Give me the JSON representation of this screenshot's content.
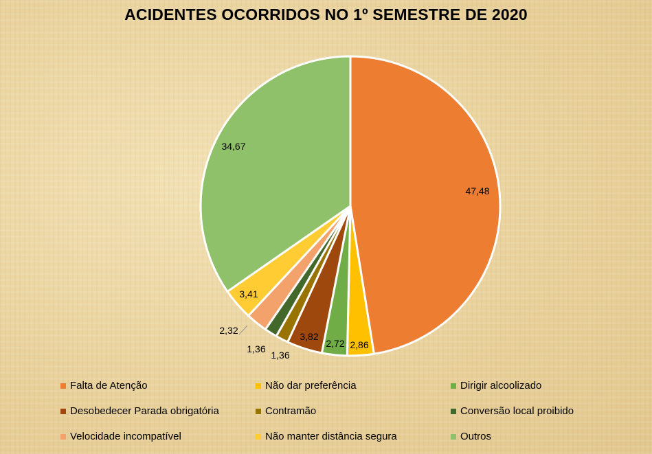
{
  "chart_data": {
    "type": "pie",
    "title": "ACIDENTES OCORRIDOS NO 1º SEMESTRE DE 2020",
    "legend_placement": "bottom",
    "slices": [
      {
        "name": "Falta de Atenção",
        "value": 47.48,
        "label": "47,48",
        "color": "#ed7d31"
      },
      {
        "name": "Não dar preferência",
        "value": 2.86,
        "label": "2,86",
        "color": "#ffc000"
      },
      {
        "name": "Dirigir alcoolizado",
        "value": 2.72,
        "label": "2,72",
        "color": "#70ad47"
      },
      {
        "name": "Desobedecer Parada obrigatória",
        "value": 3.82,
        "label": "3,82",
        "color": "#9e480e"
      },
      {
        "name": "Contramão",
        "value": 1.36,
        "label": "1,36",
        "color": "#997300"
      },
      {
        "name": "Conversão local proibido",
        "value": 1.36,
        "label": "1,36",
        "color": "#43682b"
      },
      {
        "name": "Velocidade incompatível",
        "value": 2.32,
        "label": "2,32",
        "color": "#f4a26c"
      },
      {
        "name": "Não manter distância segura",
        "value": 3.41,
        "label": "3,41",
        "color": "#ffcd33"
      },
      {
        "name": "Outros",
        "value": 34.67,
        "label": "34,67",
        "color": "#8fc16a"
      }
    ]
  }
}
